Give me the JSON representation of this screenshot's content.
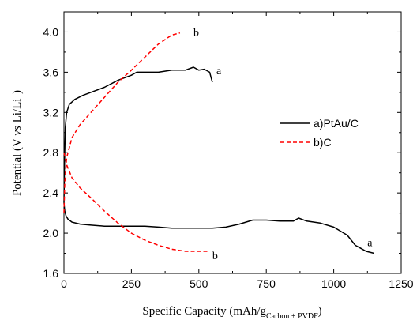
{
  "chart_data": {
    "type": "line",
    "title": "",
    "xlabel": {
      "main": "Specific Capacity (mAh/g",
      "sub": "Carbon + PVDF",
      "close": ")"
    },
    "ylabel": {
      "pre": "Potential (V ",
      "italic": "vs",
      "mid": " Li/Li",
      "sup": "+",
      "post": ")"
    },
    "xlim": [
      0,
      1250
    ],
    "ylim": [
      1.6,
      4.2
    ],
    "xticks": [
      0,
      250,
      500,
      750,
      1000,
      1250
    ],
    "xtick_labels": [
      "0",
      "250",
      "500",
      "750",
      "1000",
      "1250"
    ],
    "yticks": [
      1.6,
      2.0,
      2.4,
      2.8,
      3.2,
      3.6,
      4.0
    ],
    "ytick_labels": [
      "1.6",
      "2.0",
      "2.4",
      "2.8",
      "3.2",
      "3.6",
      "4.0"
    ],
    "grid": false,
    "legend_position": "right",
    "series": [
      {
        "name": "a)PtAu/C",
        "color": "#000000",
        "style": "solid",
        "segments": [
          {
            "x": [
              0,
              3,
              8,
              15,
              30,
              60,
              100,
              150,
              200,
              250,
              300,
              350,
              400,
              450,
              500,
              550,
              600,
              650,
              700,
              750,
              800,
              850,
              870,
              900,
              950,
              1000,
              1050,
              1080,
              1100,
              1120,
              1150
            ],
            "y": [
              2.3,
              2.22,
              2.17,
              2.14,
              2.11,
              2.09,
              2.08,
              2.07,
              2.07,
              2.07,
              2.07,
              2.06,
              2.05,
              2.05,
              2.05,
              2.05,
              2.06,
              2.09,
              2.13,
              2.13,
              2.12,
              2.12,
              2.15,
              2.12,
              2.1,
              2.06,
              1.98,
              1.88,
              1.85,
              1.82,
              1.8
            ]
          },
          {
            "x": [
              0,
              2,
              5,
              10,
              20,
              40,
              70,
              100,
              150,
              200,
              250,
              270,
              300,
              350,
              400,
              450,
              480,
              500,
              520,
              540,
              550
            ],
            "y": [
              2.3,
              2.7,
              3.05,
              3.2,
              3.28,
              3.33,
              3.37,
              3.4,
              3.45,
              3.52,
              3.57,
              3.6,
              3.6,
              3.6,
              3.62,
              3.62,
              3.65,
              3.62,
              3.63,
              3.6,
              3.5
            ]
          }
        ]
      },
      {
        "name": "b)C",
        "color": "#ff0000",
        "style": "dashed",
        "segments": [
          {
            "x": [
              0,
              10,
              30,
              60,
              100,
              150,
              200,
              250,
              300,
              350,
              400,
              450,
              500,
              540
            ],
            "y": [
              2.8,
              2.68,
              2.55,
              2.45,
              2.35,
              2.22,
              2.1,
              2.0,
              1.93,
              1.88,
              1.84,
              1.82,
              1.82,
              1.82
            ]
          },
          {
            "x": [
              0,
              3,
              10,
              30,
              60,
              100,
              150,
              200,
              250,
              300,
              350,
              400,
              430
            ],
            "y": [
              2.2,
              2.5,
              2.75,
              2.95,
              3.08,
              3.2,
              3.35,
              3.5,
              3.62,
              3.75,
              3.88,
              3.97,
              3.99
            ]
          }
        ]
      }
    ],
    "annotations": [
      {
        "text": "a",
        "x": 565,
        "y": 3.62
      },
      {
        "text": "b",
        "x": 480,
        "y": 4.0
      },
      {
        "text": "a",
        "x": 1125,
        "y": 1.91
      },
      {
        "text": "b",
        "x": 550,
        "y": 1.78
      }
    ]
  }
}
